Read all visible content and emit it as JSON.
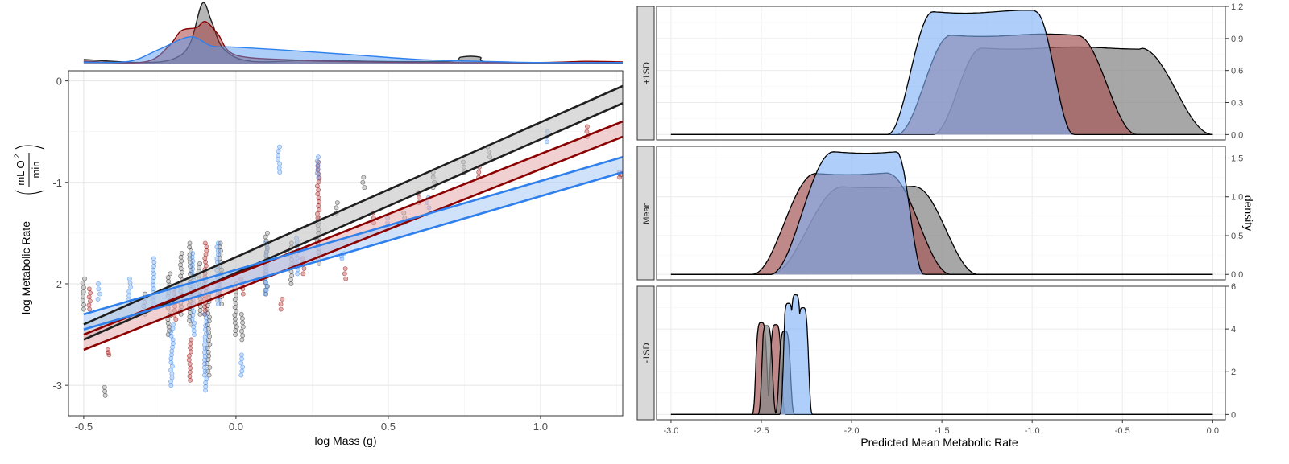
{
  "chart_data": [
    {
      "type": "scatter",
      "panel": "left",
      "xlabel": "log Mass (g)",
      "ylabel": "log Metabolic Rate",
      "ylabel_unit_numerator": "mL O",
      "ylabel_unit_superscript": "2",
      "ylabel_unit_denominator": "min",
      "xlim": [
        -0.55,
        1.27
      ],
      "ylim": [
        -3.3,
        0.1
      ],
      "x_ticks": [
        -0.5,
        0.0,
        0.5,
        1.0
      ],
      "x_tick_labels": [
        "-0.5",
        "0.0",
        "0.5",
        "1.0"
      ],
      "y_ticks": [
        0,
        -1,
        -2,
        -3
      ],
      "y_tick_labels": [
        "0",
        "-1",
        "-2",
        "-3"
      ],
      "grid": true,
      "series_colors": {
        "grey": "#1f1f1f",
        "red": "#8b0000",
        "blue": "#2f80ed"
      },
      "series": [
        {
          "color_key": "grey",
          "regression": {
            "lower": [
              [
                -0.5,
                -2.55
              ],
              [
                1.27,
                -0.22
              ]
            ],
            "upper": [
              [
                -0.5,
                -2.4
              ],
              [
                1.27,
                -0.05
              ]
            ]
          },
          "point_clusters": [
            {
              "x": -0.5,
              "y0": -2.25,
              "y1": -1.95
            },
            {
              "x": -0.43,
              "y0": -3.1,
              "y1": -3.02
            },
            {
              "x": -0.3,
              "y0": -2.3,
              "y1": -2.1
            },
            {
              "x": -0.22,
              "y0": -2.5,
              "y1": -1.9
            },
            {
              "x": -0.18,
              "y0": -2.3,
              "y1": -1.7
            },
            {
              "x": -0.15,
              "y0": -2.4,
              "y1": -1.6
            },
            {
              "x": -0.12,
              "y0": -2.3,
              "y1": -1.8
            },
            {
              "x": -0.09,
              "y0": -2.9,
              "y1": -2.1
            },
            {
              "x": -0.05,
              "y0": -2.2,
              "y1": -1.6
            },
            {
              "x": 0.0,
              "y0": -2.5,
              "y1": -2.0
            },
            {
              "x": 0.02,
              "y0": -2.55,
              "y1": -2.3
            },
            {
              "x": 0.1,
              "y0": -2.1,
              "y1": -1.5
            },
            {
              "x": 0.18,
              "y0": -2.0,
              "y1": -1.6
            },
            {
              "x": 0.27,
              "y0": -1.8,
              "y1": -1.35
            },
            {
              "x": 0.33,
              "y0": -1.3,
              "y1": -1.2
            },
            {
              "x": 0.42,
              "y0": -1.05,
              "y1": -0.95
            },
            {
              "x": 0.55,
              "y0": -1.4,
              "y1": -1.3
            },
            {
              "x": 0.65,
              "y0": -1.05,
              "y1": -0.9
            },
            {
              "x": 0.75,
              "y0": -0.9,
              "y1": -0.8
            },
            {
              "x": 0.83,
              "y0": -0.75,
              "y1": -0.65
            }
          ],
          "density_top": [
            [
              -0.5,
              0.08
            ],
            [
              -0.3,
              0.03
            ],
            [
              -0.2,
              0.1
            ],
            [
              -0.15,
              0.35
            ],
            [
              -0.11,
              1.0
            ],
            [
              -0.08,
              0.7
            ],
            [
              -0.04,
              0.25
            ],
            [
              0.05,
              0.05
            ],
            [
              0.25,
              0.07
            ],
            [
              0.45,
              0.05
            ],
            [
              0.7,
              0.05
            ],
            [
              0.74,
              0.12
            ],
            [
              0.8,
              0.12
            ],
            [
              0.85,
              0.03
            ],
            [
              1.27,
              0.02
            ]
          ]
        },
        {
          "color_key": "red",
          "regression": {
            "lower": [
              [
                -0.5,
                -2.65
              ],
              [
                1.27,
                -0.55
              ]
            ],
            "upper": [
              [
                -0.5,
                -2.5
              ],
              [
                1.27,
                -0.4
              ]
            ]
          },
          "point_clusters": [
            {
              "x": -0.48,
              "y0": -2.25,
              "y1": -2.05
            },
            {
              "x": -0.42,
              "y0": -2.7,
              "y1": -2.65
            },
            {
              "x": -0.2,
              "y0": -2.35,
              "y1": -2.05
            },
            {
              "x": -0.15,
              "y0": -2.95,
              "y1": -2.55
            },
            {
              "x": -0.1,
              "y0": -2.3,
              "y1": -1.6
            },
            {
              "x": 0.02,
              "y0": -2.1,
              "y1": -1.95
            },
            {
              "x": 0.15,
              "y0": -2.25,
              "y1": -2.15
            },
            {
              "x": 0.22,
              "y0": -1.9,
              "y1": -1.75
            },
            {
              "x": 0.27,
              "y0": -1.35,
              "y1": -0.8
            },
            {
              "x": 0.36,
              "y0": -1.95,
              "y1": -1.85
            },
            {
              "x": 0.45,
              "y0": -1.4,
              "y1": -1.3
            },
            {
              "x": 0.6,
              "y0": -1.2,
              "y1": -1.1
            },
            {
              "x": 0.8,
              "y0": -0.95,
              "y1": -0.85
            },
            {
              "x": 1.15,
              "y0": -0.55,
              "y1": -0.45
            },
            {
              "x": 1.26,
              "y0": -0.95,
              "y1": -0.9
            }
          ],
          "density_top": [
            [
              -0.5,
              0.05
            ],
            [
              -0.3,
              0.04
            ],
            [
              -0.22,
              0.3
            ],
            [
              -0.18,
              0.55
            ],
            [
              -0.13,
              0.6
            ],
            [
              -0.1,
              0.7
            ],
            [
              -0.06,
              0.5
            ],
            [
              0.0,
              0.15
            ],
            [
              0.2,
              0.07
            ],
            [
              0.3,
              0.05
            ],
            [
              0.6,
              0.03
            ],
            [
              1.0,
              0.03
            ],
            [
              1.15,
              0.05
            ],
            [
              1.27,
              0.04
            ]
          ]
        },
        {
          "color_key": "blue",
          "regression": {
            "lower": [
              [
                -0.5,
                -2.45
              ],
              [
                1.27,
                -0.9
              ]
            ],
            "upper": [
              [
                -0.5,
                -2.3
              ],
              [
                1.27,
                -0.75
              ]
            ]
          },
          "point_clusters": [
            {
              "x": -0.45,
              "y0": -2.15,
              "y1": -2.0
            },
            {
              "x": -0.35,
              "y0": -2.2,
              "y1": -1.95
            },
            {
              "x": -0.27,
              "y0": -2.2,
              "y1": -1.75
            },
            {
              "x": -0.21,
              "y0": -3.0,
              "y1": -2.4
            },
            {
              "x": -0.14,
              "y0": -2.5,
              "y1": -1.7
            },
            {
              "x": -0.1,
              "y0": -3.05,
              "y1": -2.3
            },
            {
              "x": -0.06,
              "y0": -2.2,
              "y1": -1.6
            },
            {
              "x": 0.02,
              "y0": -2.9,
              "y1": -2.7
            },
            {
              "x": 0.1,
              "y0": -2.1,
              "y1": -1.6
            },
            {
              "x": 0.14,
              "y0": -0.9,
              "y1": -0.65
            },
            {
              "x": 0.2,
              "y0": -1.9,
              "y1": -1.55
            },
            {
              "x": 0.27,
              "y0": -0.95,
              "y1": -0.75
            },
            {
              "x": 0.35,
              "y0": -1.75,
              "y1": -1.7
            },
            {
              "x": 0.5,
              "y0": -1.45,
              "y1": -1.35
            },
            {
              "x": 0.63,
              "y0": -1.25,
              "y1": -1.15
            },
            {
              "x": 1.02,
              "y0": -0.6,
              "y1": -0.5
            }
          ],
          "density_top": [
            [
              -0.5,
              0.04
            ],
            [
              -0.35,
              0.05
            ],
            [
              -0.25,
              0.25
            ],
            [
              -0.15,
              0.45
            ],
            [
              -0.08,
              0.3
            ],
            [
              0.0,
              0.28
            ],
            [
              0.2,
              0.22
            ],
            [
              0.4,
              0.15
            ],
            [
              0.6,
              0.08
            ],
            [
              0.8,
              0.05
            ],
            [
              1.0,
              0.03
            ],
            [
              1.27,
              0.03
            ]
          ]
        }
      ]
    },
    {
      "type": "area",
      "panel": "right",
      "xlabel": "Predicted Mean Metabolic Rate",
      "ylabel": "density",
      "xlim": [
        -3.08,
        0.07
      ],
      "x_ticks": [
        -3.0,
        -2.5,
        -2.0,
        -1.5,
        -1.0,
        -0.5,
        0.0
      ],
      "x_tick_labels": [
        "-3.0",
        "-2.5",
        "-2.0",
        "-1.5",
        "-1.0",
        "-0.5",
        "0.0"
      ],
      "grid": true,
      "colors": {
        "grey": "#7f7f7f",
        "red": "#a04a4a",
        "blue": "#6fa8f5",
        "outline": "#000000"
      },
      "facets": [
        {
          "strip": "+1SD",
          "ylim": [
            -0.05,
            1.2
          ],
          "y_ticks": [
            0.0,
            0.3,
            0.6,
            0.9,
            1.2
          ],
          "y_tick_labels": [
            "0.0",
            "0.3",
            "0.6",
            "0.9",
            "1.2"
          ],
          "curves": [
            {
              "color_key": "grey",
              "start": -3.0,
              "end": 0.0,
              "rise_from": -1.55,
              "plateau_from": -1.28,
              "plateau_to": -0.4,
              "fall_to": 0.0,
              "peak": 0.81
            },
            {
              "color_key": "red",
              "start": -3.0,
              "end": 0.0,
              "rise_from": -1.75,
              "plateau_from": -1.45,
              "plateau_to": -0.75,
              "fall_to": -0.42,
              "peak": 0.93
            },
            {
              "color_key": "blue",
              "start": -3.0,
              "end": 0.0,
              "rise_from": -1.8,
              "plateau_from": -1.55,
              "plateau_to": -0.98,
              "fall_to": -0.77,
              "peak": 1.15
            }
          ]
        },
        {
          "strip": "Mean",
          "ylim": [
            -0.07,
            1.65
          ],
          "y_ticks": [
            0.0,
            0.5,
            1.0,
            1.5
          ],
          "y_tick_labels": [
            "0.0",
            "0.5",
            "1.0",
            "1.5"
          ],
          "curves": [
            {
              "color_key": "grey",
              "start": -3.0,
              "end": 0.0,
              "rise_from": -2.45,
              "plateau_from": -2.05,
              "plateau_to": -1.65,
              "fall_to": -1.3,
              "peak": 1.13
            },
            {
              "color_key": "red",
              "start": -3.0,
              "end": 0.0,
              "rise_from": -2.55,
              "plateau_from": -2.2,
              "plateau_to": -1.8,
              "fall_to": -1.45,
              "peak": 1.3
            },
            {
              "color_key": "blue",
              "start": -3.0,
              "end": 0.0,
              "rise_from": -2.45,
              "plateau_from": -2.1,
              "plateau_to": -1.75,
              "fall_to": -1.6,
              "peak": 1.58
            }
          ]
        },
        {
          "strip": "-1SD",
          "ylim": [
            -0.25,
            6.0
          ],
          "y_ticks": [
            0,
            2,
            4,
            6
          ],
          "y_tick_labels": [
            "0",
            "2",
            "4",
            "6"
          ],
          "curves": [
            {
              "color_key": "red",
              "peaks": [
                [
                  -2.5,
                  4.3
                ],
                [
                  -2.42,
                  4.2
                ]
              ],
              "support": [
                -2.56,
                -2.33
              ]
            },
            {
              "color_key": "grey",
              "peaks": [
                [
                  -2.47,
                  4.15
                ],
                [
                  -2.37,
                  3.9
                ]
              ],
              "support": [
                -2.52,
                -2.25
              ]
            },
            {
              "color_key": "blue",
              "peaks": [
                [
                  -2.35,
                  5.2
                ],
                [
                  -2.31,
                  5.6
                ],
                [
                  -2.27,
                  5.0
                ]
              ],
              "support": [
                -2.4,
                -2.2
              ]
            }
          ]
        }
      ]
    }
  ]
}
